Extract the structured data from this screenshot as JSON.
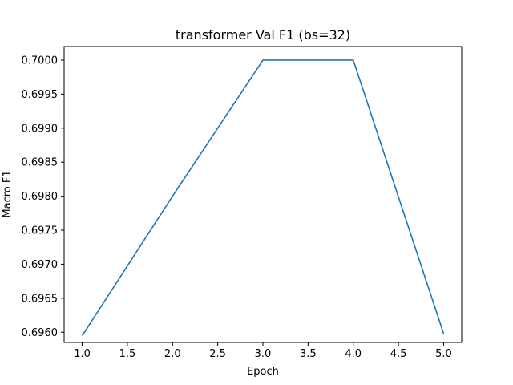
{
  "chart_data": {
    "type": "line",
    "title": "transformer Val F1 (bs=32)",
    "xlabel": "Epoch",
    "ylabel": "Macro F1",
    "x_ticks": [
      "1.0",
      "1.5",
      "2.0",
      "2.5",
      "3.0",
      "3.5",
      "4.0",
      "4.5",
      "5.0"
    ],
    "y_ticks": [
      "0.6960",
      "0.6965",
      "0.6970",
      "0.6975",
      "0.6980",
      "0.6985",
      "0.6990",
      "0.6995",
      "0.7000"
    ],
    "xlim": [
      0.8,
      5.2
    ],
    "ylim": [
      0.69585,
      0.7002
    ],
    "grid": false,
    "series": [
      {
        "color": "#1f77b4",
        "x": [
          1,
          2,
          3,
          4,
          5
        ],
        "y": [
          0.69595,
          0.698,
          0.7,
          0.7,
          0.69598
        ]
      }
    ]
  }
}
